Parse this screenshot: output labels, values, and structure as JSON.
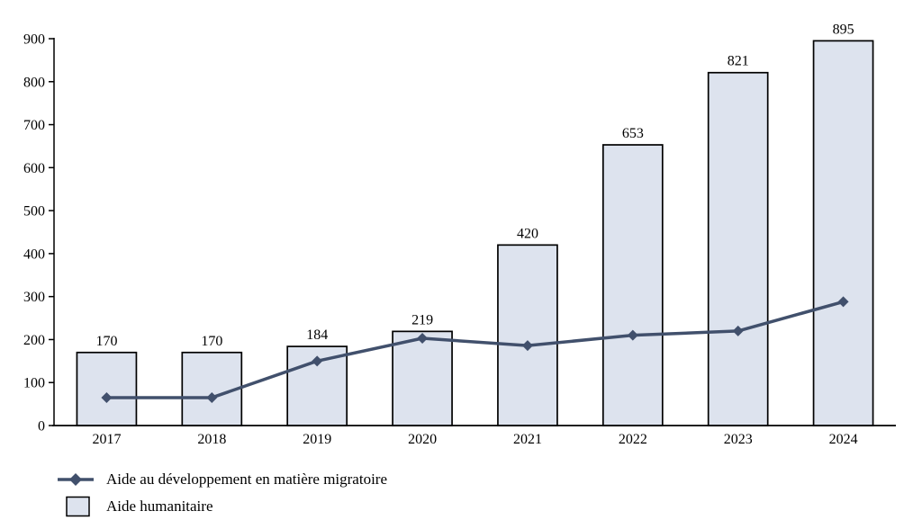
{
  "chart_data": {
    "type": "combo",
    "categories": [
      "2017",
      "2018",
      "2019",
      "2020",
      "2021",
      "2022",
      "2023",
      "2024"
    ],
    "series": [
      {
        "name": "Aide humanitaire",
        "type": "bar",
        "values": [
          170,
          170,
          184,
          219,
          420,
          653,
          821,
          895
        ],
        "data_labels": [
          170,
          170,
          184,
          219,
          420,
          653,
          821,
          895
        ],
        "fill": "#dde3ee",
        "border": "#000000"
      },
      {
        "name": "Aide au développement en matière migratoire",
        "type": "line",
        "values": [
          65,
          65,
          150,
          203,
          186,
          210,
          220,
          288
        ],
        "color": "#41506c",
        "marker": "diamond"
      }
    ],
    "title": "",
    "xlabel": "",
    "ylabel": "",
    "ylim": [
      0,
      900
    ],
    "ytick_step": 100,
    "yticks": [
      0,
      100,
      200,
      300,
      400,
      500,
      600,
      700,
      800,
      900
    ],
    "grid": false,
    "legend_position": "bottom-left"
  },
  "legend": {
    "items": [
      {
        "label": "Aide au développement en matière migratoire",
        "symbol": "line-diamond"
      },
      {
        "label": "Aide humanitaire",
        "symbol": "filled-square"
      }
    ]
  }
}
